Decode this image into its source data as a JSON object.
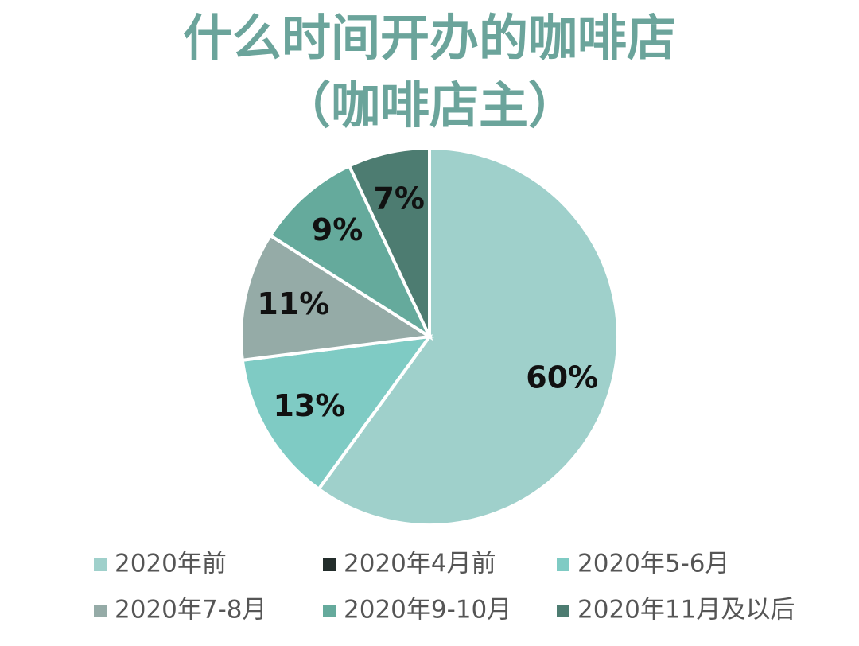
{
  "chart_data": {
    "type": "pie",
    "title": "什么时间开办的咖啡店",
    "subtitle": "（咖啡店主）",
    "categories": [
      "2020年前",
      "2020年4月前",
      "2020年5-6月",
      "2020年7-8月",
      "2020年9-10月",
      "2020年11月及以后"
    ],
    "values": [
      60,
      0,
      13,
      11,
      9,
      7
    ],
    "value_labels": [
      "60%",
      null,
      "13%",
      "11%",
      "9%",
      "7%"
    ],
    "colors": [
      "#9fd0cb",
      "#232d2b",
      "#7fcbc4",
      "#95aba7",
      "#65aa9c",
      "#4d7c71"
    ]
  }
}
